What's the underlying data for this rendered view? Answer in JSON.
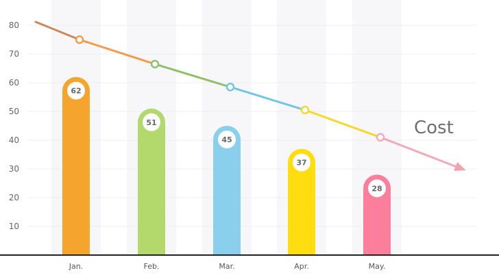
{
  "chart_data": {
    "type": "bar",
    "categories": [
      "Jan.",
      "Feb.",
      "Mar.",
      "Apr.",
      "May."
    ],
    "values": [
      62,
      51,
      45,
      37,
      28
    ],
    "line_values": [
      75,
      66.5,
      58.5,
      50.5,
      41
    ],
    "ylim": [
      0,
      80
    ],
    "yticks": [
      "10",
      "20",
      "30",
      "40",
      "50",
      "60",
      "70",
      "80"
    ],
    "annotation": "Cost",
    "colors": [
      "#f5a52e",
      "#b3d86b",
      "#8ad0ec",
      "#ffdd0f",
      "#fb7f9c"
    ],
    "grid": true
  }
}
